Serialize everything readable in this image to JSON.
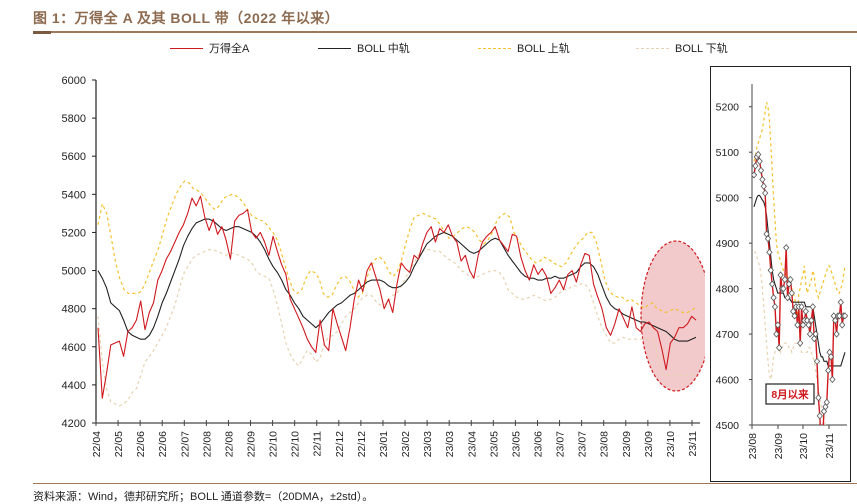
{
  "title": "图 1：万得全 A 及其 BOLL 带（2022 年以来）",
  "source": "资料来源：Wind，德邦研究所；BOLL 通道参数=（20DMA，±2std）。",
  "colors": {
    "price": "#d0191e",
    "mid": "#222222",
    "upper": "#f5c02a",
    "lower": "#e6d2b0",
    "highlight_fill": "#eeb8ba",
    "highlight_stroke": "#d0191e",
    "marker_fill": "#ffffff",
    "marker_stroke": "#555555"
  },
  "legend": [
    {
      "label": "万得全A",
      "style": "solid",
      "series": "price"
    },
    {
      "label": "BOLL 中轨",
      "style": "solid",
      "series": "mid"
    },
    {
      "label": "BOLL 上轨",
      "style": "dashed",
      "series": "upper"
    },
    {
      "label": "BOLL 下轨",
      "style": "dashed",
      "series": "lower"
    }
  ],
  "chart_data": [
    {
      "type": "line",
      "name": "main",
      "title": "",
      "xlabel": "",
      "ylabel": "",
      "ylim": [
        4200,
        6000
      ],
      "yticks": [
        4200,
        4400,
        4600,
        4800,
        5000,
        5200,
        5400,
        5600,
        5800,
        6000
      ],
      "xtick_labels": [
        "22/04",
        "22/05",
        "22/06",
        "22/06",
        "22/07",
        "22/08",
        "22/08",
        "22/09",
        "22/10",
        "22/10",
        "22/11",
        "22/12",
        "22/12",
        "23/01",
        "23/02",
        "23/03",
        "23/03",
        "23/04",
        "23/05",
        "23/05",
        "23/06",
        "23/07",
        "23/07",
        "23/08",
        "23/09",
        "23/09",
        "23/10",
        "23/11"
      ],
      "grid": false,
      "legend_position": "top",
      "annotation": "highlight ellipse over 23/10–23/11",
      "series": [
        {
          "name": "万得全A",
          "key": "price",
          "values": [
            4700,
            4330,
            4460,
            4610,
            4620,
            4630,
            4550,
            4680,
            4700,
            4740,
            4840,
            4690,
            4780,
            4830,
            4950,
            5000,
            5060,
            5100,
            5150,
            5200,
            5240,
            5300,
            5380,
            5340,
            5390,
            5280,
            5210,
            5270,
            5190,
            5230,
            5160,
            5060,
            5260,
            5290,
            5300,
            5320,
            5200,
            5170,
            5200,
            5150,
            5080,
            5180,
            5100,
            5030,
            4980,
            4850,
            4800,
            4750,
            4700,
            4640,
            4600,
            4570,
            4740,
            4610,
            4580,
            4800,
            4720,
            4650,
            4580,
            4700,
            4850,
            4950,
            4890,
            5000,
            5040,
            4970,
            4900,
            4800,
            4850,
            4780,
            4930,
            5040,
            5010,
            4990,
            5080,
            5060,
            5140,
            5200,
            5230,
            5150,
            5220,
            5200,
            5240,
            5180,
            5150,
            5050,
            5080,
            5000,
            4960,
            5080,
            5150,
            5180,
            5200,
            5230,
            5160,
            5130,
            5100,
            5190,
            5180,
            5070,
            5000,
            4950,
            5030,
            4980,
            5010,
            4970,
            4880,
            4910,
            4950,
            4900,
            4980,
            5000,
            4940,
            5030,
            5090,
            5080,
            4930,
            4860,
            4800,
            4700,
            4660,
            4720,
            4800,
            4750,
            4700,
            4810,
            4700,
            4680,
            4720,
            4730,
            4700,
            4680,
            4590,
            4480,
            4620,
            4650,
            4700,
            4700,
            4720,
            4760,
            4740
          ]
        },
        {
          "name": "BOLL 中轨",
          "key": "mid",
          "values": [
            5000,
            4960,
            4910,
            4830,
            4810,
            4790,
            4740,
            4680,
            4660,
            4650,
            4640,
            4640,
            4660,
            4700,
            4760,
            4830,
            4880,
            4940,
            5000,
            5060,
            5130,
            5180,
            5220,
            5250,
            5260,
            5270,
            5270,
            5260,
            5240,
            5220,
            5210,
            5220,
            5230,
            5230,
            5220,
            5210,
            5200,
            5180,
            5150,
            5110,
            5060,
            5020,
            4990,
            4950,
            4900,
            4870,
            4830,
            4800,
            4760,
            4740,
            4720,
            4700,
            4720,
            4750,
            4780,
            4800,
            4820,
            4830,
            4850,
            4870,
            4880,
            4900,
            4920,
            4940,
            4950,
            4950,
            4950,
            4940,
            4920,
            4910,
            4910,
            4920,
            4940,
            4970,
            5020,
            5060,
            5100,
            5140,
            5160,
            5180,
            5190,
            5200,
            5190,
            5180,
            5160,
            5140,
            5120,
            5100,
            5090,
            5100,
            5120,
            5140,
            5160,
            5170,
            5160,
            5120,
            5080,
            5050,
            5020,
            4990,
            4970,
            4960,
            4960,
            4950,
            4950,
            4960,
            4960,
            4970,
            4960,
            4960,
            4970,
            4980,
            4990,
            5020,
            5040,
            5040,
            5020,
            4980,
            4920,
            4860,
            4820,
            4800,
            4790,
            4770,
            4760,
            4750,
            4740,
            4730,
            4730,
            4720,
            4710,
            4700,
            4690,
            4680,
            4660,
            4640,
            4630,
            4630,
            4630,
            4640,
            4650
          ]
        },
        {
          "name": "BOLL 上轨",
          "key": "upper",
          "values": [
            5240,
            5350,
            5300,
            5180,
            5050,
            4960,
            4900,
            4880,
            4880,
            4880,
            4890,
            4940,
            5000,
            5060,
            5120,
            5200,
            5280,
            5340,
            5400,
            5440,
            5470,
            5460,
            5430,
            5420,
            5400,
            5370,
            5340,
            5320,
            5340,
            5380,
            5390,
            5400,
            5390,
            5370,
            5340,
            5300,
            5280,
            5270,
            5260,
            5240,
            5210,
            5180,
            5120,
            5040,
            4960,
            4900,
            4880,
            4900,
            4960,
            5000,
            4990,
            4960,
            4880,
            4860,
            4870,
            4920,
            4960,
            4970,
            4950,
            4900,
            4860,
            4880,
            4960,
            5020,
            5060,
            5070,
            5050,
            5000,
            4970,
            4990,
            5050,
            5140,
            5220,
            5280,
            5290,
            5300,
            5290,
            5280,
            5270,
            5240,
            5200,
            5170,
            5180,
            5200,
            5220,
            5230,
            5220,
            5200,
            5160,
            5140,
            5160,
            5200,
            5260,
            5290,
            5300,
            5280,
            5200,
            5160,
            5120,
            5090,
            5060,
            5040,
            5050,
            5070,
            5060,
            5040,
            5030,
            5020,
            5040,
            5080,
            5120,
            5150,
            5170,
            5200,
            5200,
            5150,
            5050,
            4950,
            4890,
            4870,
            4860,
            4860,
            4840,
            4850,
            4830,
            4820,
            4800,
            4820,
            4830,
            4800,
            4790,
            4780,
            4790,
            4800,
            4790,
            4780,
            4780,
            4790,
            4810
          ]
        },
        {
          "name": "BOLL 下轨",
          "key": "lower",
          "values": [
            4760,
            4520,
            4380,
            4310,
            4300,
            4290,
            4300,
            4320,
            4360,
            4380,
            4450,
            4520,
            4550,
            4580,
            4620,
            4660,
            4700,
            4760,
            4820,
            4900,
            4980,
            5020,
            5060,
            5080,
            5090,
            5100,
            5110,
            5110,
            5100,
            5090,
            5080,
            5090,
            5090,
            5080,
            5070,
            5060,
            5040,
            5000,
            4980,
            4970,
            4960,
            4900,
            4820,
            4720,
            4620,
            4560,
            4520,
            4500,
            4540,
            4580,
            4560,
            4520,
            4540,
            4620,
            4650,
            4660,
            4680,
            4720,
            4760,
            4780,
            4800,
            4830,
            4860,
            4870,
            4870,
            4840,
            4820,
            4820,
            4840,
            4870,
            4880,
            4920,
            4960,
            5000,
            5040,
            5080,
            5100,
            5110,
            5110,
            5100,
            5100,
            5080,
            5060,
            5050,
            5030,
            5000,
            4990,
            4970,
            4960,
            4970,
            4980,
            4990,
            5000,
            5000,
            4990,
            4960,
            4900,
            4880,
            4860,
            4850,
            4850,
            4860,
            4870,
            4860,
            4850,
            4840,
            4850,
            4860,
            4880,
            4900,
            4900,
            4920,
            4920,
            4930,
            4930,
            4900,
            4830,
            4760,
            4700,
            4660,
            4620,
            4620,
            4640,
            4650,
            4640,
            4640,
            4640,
            4640,
            4640,
            4640,
            4640,
            4560,
            4460,
            4450,
            4450,
            4450,
            4450,
            4450,
            4450,
            4450,
            4450
          ]
        }
      ]
    },
    {
      "type": "line",
      "name": "inset",
      "title": "",
      "ylim": [
        4500,
        5250
      ],
      "yticks": [
        4500,
        4600,
        4700,
        4800,
        4900,
        5000,
        5100,
        5200
      ],
      "xtick_labels": [
        "23/08",
        "23/09",
        "23/10",
        "23/11"
      ],
      "grid": false,
      "annotation": "8月以来",
      "series": [
        {
          "name": "万得全A",
          "key": "price",
          "markers": true,
          "values": [
            5050,
            5070,
            5090,
            5095,
            5080,
            5060,
            5040,
            5025,
            5010,
            4920,
            4910,
            4880,
            4840,
            4810,
            4780,
            4760,
            4700,
            4720,
            4670,
            4830,
            4800,
            4800,
            4820,
            4890,
            4780,
            4810,
            4820,
            4790,
            4750,
            4740,
            4760,
            4720,
            4760,
            4680,
            4760,
            4720,
            4730,
            4750,
            4730,
            4720,
            4700,
            4730,
            4760,
            4690,
            4700,
            4640,
            4560,
            4520,
            4450,
            4470,
            4530,
            4540,
            4550,
            4620,
            4660,
            4650,
            4600,
            4740,
            4730,
            4700,
            4740,
            4740,
            4770,
            4720,
            4740,
            4740
          ]
        },
        {
          "name": "BOLL 中轨",
          "key": "mid",
          "values": [
            4980,
            4990,
            5000,
            5005,
            5005,
            5000,
            4995,
            4990,
            4980,
            4960,
            4930,
            4900,
            4870,
            4840,
            4820,
            4810,
            4800,
            4790,
            4790,
            4790,
            4790,
            4790,
            4780,
            4780,
            4780,
            4780,
            4775,
            4770,
            4770,
            4770,
            4770,
            4770,
            4770,
            4770,
            4770,
            4770,
            4770,
            4760,
            4760,
            4760,
            4760,
            4760,
            4760,
            4740,
            4720,
            4700,
            4680,
            4660,
            4650,
            4650,
            4640,
            4640,
            4640,
            4630,
            4630,
            4630,
            4630,
            4630,
            4630,
            4630,
            4630,
            4630,
            4630,
            4640,
            4650,
            4660
          ]
        },
        {
          "name": "BOLL 上轨",
          "key": "upper",
          "values": [
            5080,
            5090,
            5110,
            5120,
            5130,
            5140,
            5150,
            5170,
            5190,
            5210,
            5200,
            5170,
            5120,
            5060,
            5000,
            4950,
            4900,
            4880,
            4870,
            4860,
            4850,
            4840,
            4840,
            4830,
            4830,
            4820,
            4800,
            4800,
            4790,
            4780,
            4760,
            4740,
            4790,
            4800,
            4820,
            4830,
            4850,
            4810,
            4790,
            4800,
            4810,
            4820,
            4840,
            4830,
            4800,
            4790,
            4780,
            4790,
            4800,
            4810,
            4820,
            4830,
            4840,
            4850,
            4850,
            4840,
            4830,
            4820,
            4810,
            4800,
            4790,
            4790,
            4800,
            4810,
            4830,
            4850
          ]
        },
        {
          "name": "BOLL 下轨",
          "key": "lower",
          "values": [
            4880,
            4880,
            4870,
            4860,
            4850,
            4830,
            4800,
            4760,
            4720,
            4680,
            4640,
            4610,
            4600,
            4620,
            4650,
            4660,
            4670,
            4670,
            4670,
            4660,
            4670,
            4680,
            4680,
            4680,
            4680,
            4670,
            4670,
            4660,
            4670,
            4680,
            4680,
            4680,
            4680,
            4670,
            4660,
            4660,
            4660,
            4660,
            4660,
            4670,
            4670,
            4660,
            4650,
            4640,
            4620,
            4600,
            4580,
            4560,
            4540,
            4520,
            4510,
            4500,
            4490,
            4480,
            4470,
            4460,
            4450,
            4450,
            4450,
            4440,
            4440,
            4440,
            4440,
            4440,
            4440,
            4440
          ]
        }
      ]
    }
  ]
}
